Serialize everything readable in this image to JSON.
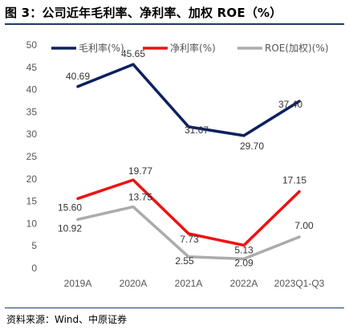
{
  "title": "图 3：公司近年毛利率、净利率、加权 ROE（%）",
  "source": "资料来源：Wind、中原证券",
  "chart_data": {
    "type": "line",
    "categories": [
      "2019A",
      "2020A",
      "2021A",
      "2022A",
      "2023Q1-Q3"
    ],
    "ylim": [
      0,
      50
    ],
    "yticks": [
      0,
      5,
      10,
      15,
      20,
      25,
      30,
      35,
      40,
      45,
      50
    ],
    "grid": false,
    "legend_position": "top",
    "series": [
      {
        "name": "毛利率(%)",
        "color": "#0b2060",
        "values": [
          40.69,
          45.65,
          31.67,
          29.7,
          37.4
        ],
        "labels": [
          "40.69",
          "45.65",
          "31.67",
          "29.70",
          "37.40"
        ]
      },
      {
        "name": "净利率(%)",
        "color": "#ee1111",
        "values": [
          15.6,
          19.77,
          7.73,
          5.13,
          17.15
        ],
        "labels": [
          "15.60",
          "19.77",
          "7.73",
          "5.13",
          "17.15"
        ]
      },
      {
        "name": "ROE(加权)(%)",
        "color": "#ababab",
        "values": [
          10.92,
          13.75,
          2.55,
          2.09,
          7.0
        ],
        "labels": [
          "10.92",
          "13.75",
          "2.55",
          "2.09",
          "7.00"
        ]
      }
    ]
  }
}
